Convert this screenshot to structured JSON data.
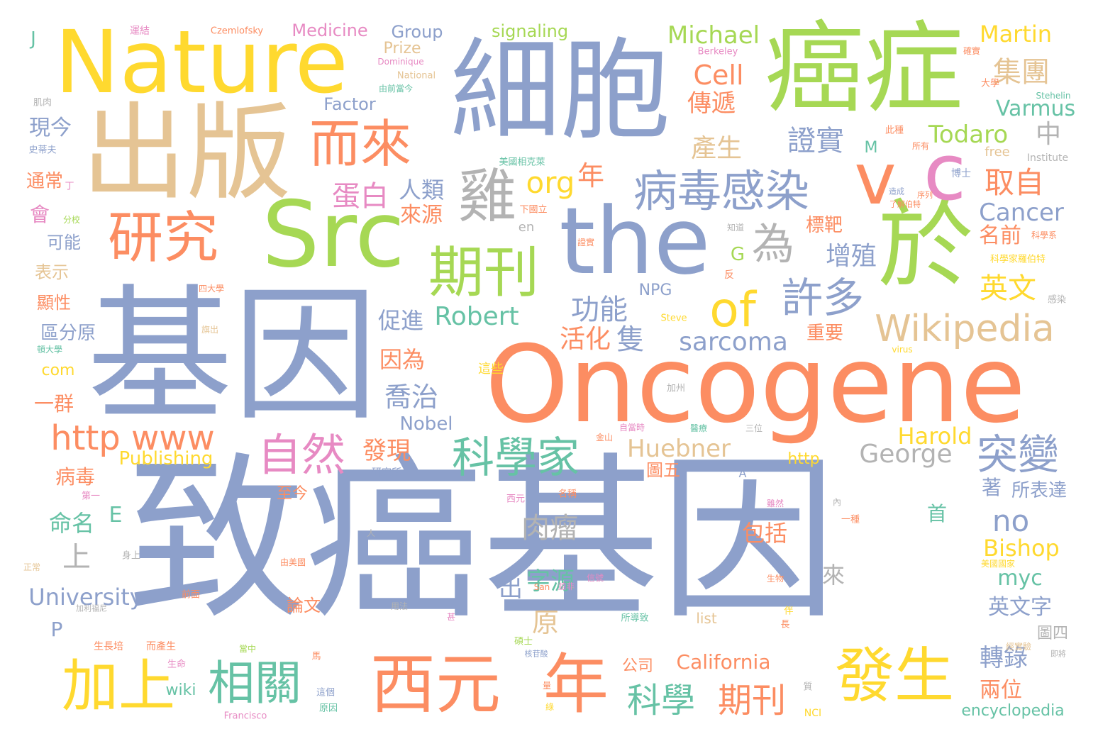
{
  "palette": {
    "blue": "#8da0cb",
    "orange": "#fc8d62",
    "green": "#a6d854",
    "yellow": "#ffd92f",
    "tan": "#e5c494",
    "teal": "#66c2a5",
    "pink": "#e78ac3",
    "gray": "#b3b3b3"
  },
  "words": [
    {
      "text": "致癌基因",
      "color": "blue"
    },
    {
      "text": "Oncogene",
      "color": "orange"
    },
    {
      "text": "基因",
      "color": "blue"
    },
    {
      "text": "細胞",
      "color": "blue"
    },
    {
      "text": "癌症",
      "color": "green"
    },
    {
      "text": "出版",
      "color": "tan"
    },
    {
      "text": "Nature",
      "color": "yellow"
    },
    {
      "text": "Src",
      "color": "green"
    },
    {
      "text": "the",
      "color": "blue"
    },
    {
      "text": "於",
      "color": "green"
    },
    {
      "text": "v",
      "color": "orange"
    },
    {
      "text": "c",
      "color": "pink"
    },
    {
      "text": "研究",
      "color": "orange"
    },
    {
      "text": "而來",
      "color": "orange"
    },
    {
      "text": "雞",
      "color": "gray"
    },
    {
      "text": "期刊",
      "color": "green"
    },
    {
      "text": "病毒感染",
      "color": "blue"
    },
    {
      "text": "為",
      "color": "gray"
    },
    {
      "text": "of",
      "color": "yellow"
    },
    {
      "text": "許多",
      "color": "blue"
    },
    {
      "text": "Wikipedia",
      "color": "tan"
    },
    {
      "text": "西元",
      "color": "orange"
    },
    {
      "text": "年",
      "color": "orange"
    },
    {
      "text": "發生",
      "color": "yellow"
    },
    {
      "text": "加上",
      "color": "yellow"
    },
    {
      "text": "相關",
      "color": "teal"
    },
    {
      "text": "科學家",
      "color": "teal"
    },
    {
      "text": "自然",
      "color": "pink"
    },
    {
      "text": "突變",
      "color": "blue"
    },
    {
      "text": "http www",
      "color": "orange"
    },
    {
      "text": "科學",
      "color": "teal"
    },
    {
      "text": "期刊",
      "color": "orange"
    },
    {
      "text": "Huebner",
      "color": "tan"
    },
    {
      "text": "George",
      "color": "gray"
    },
    {
      "text": "Michael",
      "color": "green"
    },
    {
      "text": "Martin",
      "color": "yellow"
    },
    {
      "text": "Cell",
      "color": "orange"
    },
    {
      "text": "集團",
      "color": "tan"
    },
    {
      "text": "Varmus",
      "color": "teal"
    },
    {
      "text": "傳遞",
      "color": "orange"
    },
    {
      "text": "Todaro",
      "color": "green"
    },
    {
      "text": "證實",
      "color": "blue"
    },
    {
      "text": "中",
      "color": "gray"
    },
    {
      "text": "產生",
      "color": "tan"
    },
    {
      "text": "取自",
      "color": "orange"
    },
    {
      "text": "Cancer",
      "color": "blue"
    },
    {
      "text": "org",
      "color": "yellow"
    },
    {
      "text": "年",
      "color": "orange"
    },
    {
      "text": "人類",
      "color": "blue"
    },
    {
      "text": "蛋白",
      "color": "pink"
    },
    {
      "text": "來源",
      "color": "orange"
    },
    {
      "text": "名前",
      "color": "orange"
    },
    {
      "text": "標靶",
      "color": "orange"
    },
    {
      "text": "增殖",
      "color": "blue"
    },
    {
      "text": "英文",
      "color": "yellow"
    },
    {
      "text": "功能",
      "color": "blue"
    },
    {
      "text": "sarcoma",
      "color": "blue"
    },
    {
      "text": "Robert",
      "color": "teal"
    },
    {
      "text": "促進",
      "color": "blue"
    },
    {
      "text": "活化",
      "color": "orange"
    },
    {
      "text": "隻",
      "color": "blue"
    },
    {
      "text": "重要",
      "color": "orange"
    },
    {
      "text": "因為",
      "color": "orange"
    },
    {
      "text": "喬治",
      "color": "blue"
    },
    {
      "text": "發現",
      "color": "orange"
    },
    {
      "text": "Nobel",
      "color": "blue"
    },
    {
      "text": "Publishing",
      "color": "yellow"
    },
    {
      "text": "圖五",
      "color": "orange"
    },
    {
      "text": "Harold",
      "color": "yellow"
    },
    {
      "text": "http",
      "color": "yellow"
    },
    {
      "text": "著",
      "color": "blue"
    },
    {
      "text": "所表達",
      "color": "blue"
    },
    {
      "text": "肉瘤",
      "color": "gray"
    },
    {
      "text": "no",
      "color": "blue"
    },
    {
      "text": "首",
      "color": "teal"
    },
    {
      "text": "包括",
      "color": "orange"
    },
    {
      "text": "Bishop",
      "color": "yellow"
    },
    {
      "text": "myc",
      "color": "teal"
    },
    {
      "text": "字源",
      "color": "teal"
    },
    {
      "text": "出",
      "color": "blue"
    },
    {
      "text": "原",
      "color": "tan"
    },
    {
      "text": "來",
      "color": "gray"
    },
    {
      "text": "英文字",
      "color": "blue"
    },
    {
      "text": "University",
      "color": "blue"
    },
    {
      "text": "論文",
      "color": "orange"
    },
    {
      "text": "圖四",
      "color": "gray"
    },
    {
      "text": "轉錄",
      "color": "blue"
    },
    {
      "text": "California",
      "color": "orange"
    },
    {
      "text": "公司",
      "color": "orange"
    },
    {
      "text": "兩位",
      "color": "orange"
    },
    {
      "text": "encyclopedia",
      "color": "teal"
    },
    {
      "text": "wiki",
      "color": "teal"
    },
    {
      "text": "Medicine",
      "color": "pink"
    },
    {
      "text": "Group",
      "color": "blue"
    },
    {
      "text": "signaling",
      "color": "green"
    },
    {
      "text": "Prize",
      "color": "tan"
    },
    {
      "text": "Factor",
      "color": "blue"
    },
    {
      "text": "現今",
      "color": "blue"
    },
    {
      "text": "通常",
      "color": "orange"
    },
    {
      "text": "會",
      "color": "pink"
    },
    {
      "text": "可能",
      "color": "blue"
    },
    {
      "text": "表示",
      "color": "tan"
    },
    {
      "text": "顯性",
      "color": "orange"
    },
    {
      "text": "區分原",
      "color": "blue"
    },
    {
      "text": "com",
      "color": "yellow"
    },
    {
      "text": "一群",
      "color": "orange"
    },
    {
      "text": "病毒",
      "color": "orange"
    },
    {
      "text": "命名",
      "color": "teal"
    },
    {
      "text": "上",
      "color": "gray"
    },
    {
      "text": "E",
      "color": "teal"
    },
    {
      "text": "P",
      "color": "blue"
    },
    {
      "text": "J",
      "color": "teal"
    },
    {
      "text": "G",
      "color": "green"
    },
    {
      "text": "M",
      "color": "teal"
    },
    {
      "text": "至今",
      "color": "orange"
    },
    {
      "text": "NPG",
      "color": "blue"
    },
    {
      "text": "free",
      "color": "tan"
    },
    {
      "text": "NCI",
      "color": "yellow"
    },
    {
      "text": "list",
      "color": "tan"
    },
    {
      "text": "en",
      "color": "gray"
    },
    {
      "text": "A",
      "color": "blue"
    },
    {
      "text": "運結",
      "color": "pink"
    },
    {
      "text": "Czemlofsky",
      "color": "orange"
    },
    {
      "text": "Berkeley",
      "color": "pink"
    },
    {
      "text": "Dominique",
      "color": "pink"
    },
    {
      "text": "National",
      "color": "tan"
    },
    {
      "text": "Steve",
      "color": "yellow"
    },
    {
      "text": "Institute",
      "color": "gray"
    },
    {
      "text": "Stehelin",
      "color": "teal"
    },
    {
      "text": "Francisco",
      "color": "pink"
    },
    {
      "text": "virus",
      "color": "yellow"
    },
    {
      "text": "San",
      "color": "orange"
    },
    {
      "text": "肌肉",
      "color": "gray"
    },
    {
      "text": "史蒂夫",
      "color": "blue"
    },
    {
      "text": "丁",
      "color": "pink"
    },
    {
      "text": "分校",
      "color": "green"
    },
    {
      "text": "四大學",
      "color": "orange"
    },
    {
      "text": "頓大學",
      "color": "teal"
    },
    {
      "text": "旗出",
      "color": "tan"
    },
    {
      "text": "這些",
      "color": "yellow"
    },
    {
      "text": "加州",
      "color": "gray"
    },
    {
      "text": "金山",
      "color": "orange"
    },
    {
      "text": "自當時",
      "color": "pink"
    },
    {
      "text": "醫療",
      "color": "teal"
    },
    {
      "text": "三位",
      "color": "gray"
    },
    {
      "text": "研究所",
      "color": "blue"
    },
    {
      "text": "第一",
      "color": "pink"
    },
    {
      "text": "西元",
      "color": "pink"
    },
    {
      "text": "名稱",
      "color": "orange"
    },
    {
      "text": "身上",
      "color": "gray"
    },
    {
      "text": "正常",
      "color": "tan"
    },
    {
      "text": "由美國",
      "color": "orange"
    },
    {
      "text": "前面",
      "color": "orange"
    },
    {
      "text": "用法",
      "color": "gray"
    },
    {
      "text": "並非",
      "color": "pink"
    },
    {
      "text": "信號",
      "color": "pink"
    },
    {
      "text": "所導致",
      "color": "teal"
    },
    {
      "text": "生物",
      "color": "orange"
    },
    {
      "text": "美國國家",
      "color": "yellow"
    },
    {
      "text": "一種",
      "color": "orange"
    },
    {
      "text": "雖然",
      "color": "pink"
    },
    {
      "text": "內",
      "color": "gray"
    },
    {
      "text": "生長培",
      "color": "orange"
    },
    {
      "text": "而產生",
      "color": "orange"
    },
    {
      "text": "碩士",
      "color": "green"
    },
    {
      "text": "當中",
      "color": "green"
    },
    {
      "text": "生命",
      "color": "pink"
    },
    {
      "text": "核苷酸",
      "color": "blue"
    },
    {
      "text": "這個",
      "color": "blue"
    },
    {
      "text": "原因",
      "color": "teal"
    },
    {
      "text": "經實驗",
      "color": "tan"
    },
    {
      "text": "即將",
      "color": "gray"
    },
    {
      "text": "加利福尼",
      "color": "gray"
    },
    {
      "text": "美國相克萊",
      "color": "teal"
    },
    {
      "text": "下國立",
      "color": "orange"
    },
    {
      "text": "此種",
      "color": "orange"
    },
    {
      "text": "所有",
      "color": "orange"
    },
    {
      "text": "博士",
      "color": "blue"
    },
    {
      "text": "知道",
      "color": "gray"
    },
    {
      "text": "證實",
      "color": "orange"
    },
    {
      "text": "反",
      "color": "orange"
    },
    {
      "text": "科學系",
      "color": "orange"
    },
    {
      "text": "科學家羅伯特",
      "color": "yellow"
    },
    {
      "text": "大學",
      "color": "orange"
    },
    {
      "text": "感染",
      "color": "gray"
    },
    {
      "text": "序列",
      "color": "orange"
    },
    {
      "text": "了解伯特",
      "color": "orange"
    },
    {
      "text": "造成",
      "color": "blue"
    },
    {
      "text": "由前當今",
      "color": "teal"
    },
    {
      "text": "確實",
      "color": "orange"
    },
    {
      "text": "人",
      "color": "gray"
    },
    {
      "text": "伴",
      "color": "yellow"
    },
    {
      "text": "長",
      "color": "orange"
    },
    {
      "text": "量",
      "color": "orange"
    },
    {
      "text": "質",
      "color": "gray"
    },
    {
      "text": "馬",
      "color": "orange"
    },
    {
      "text": "甚",
      "color": "pink"
    },
    {
      "text": "綠",
      "color": "yellow"
    }
  ]
}
